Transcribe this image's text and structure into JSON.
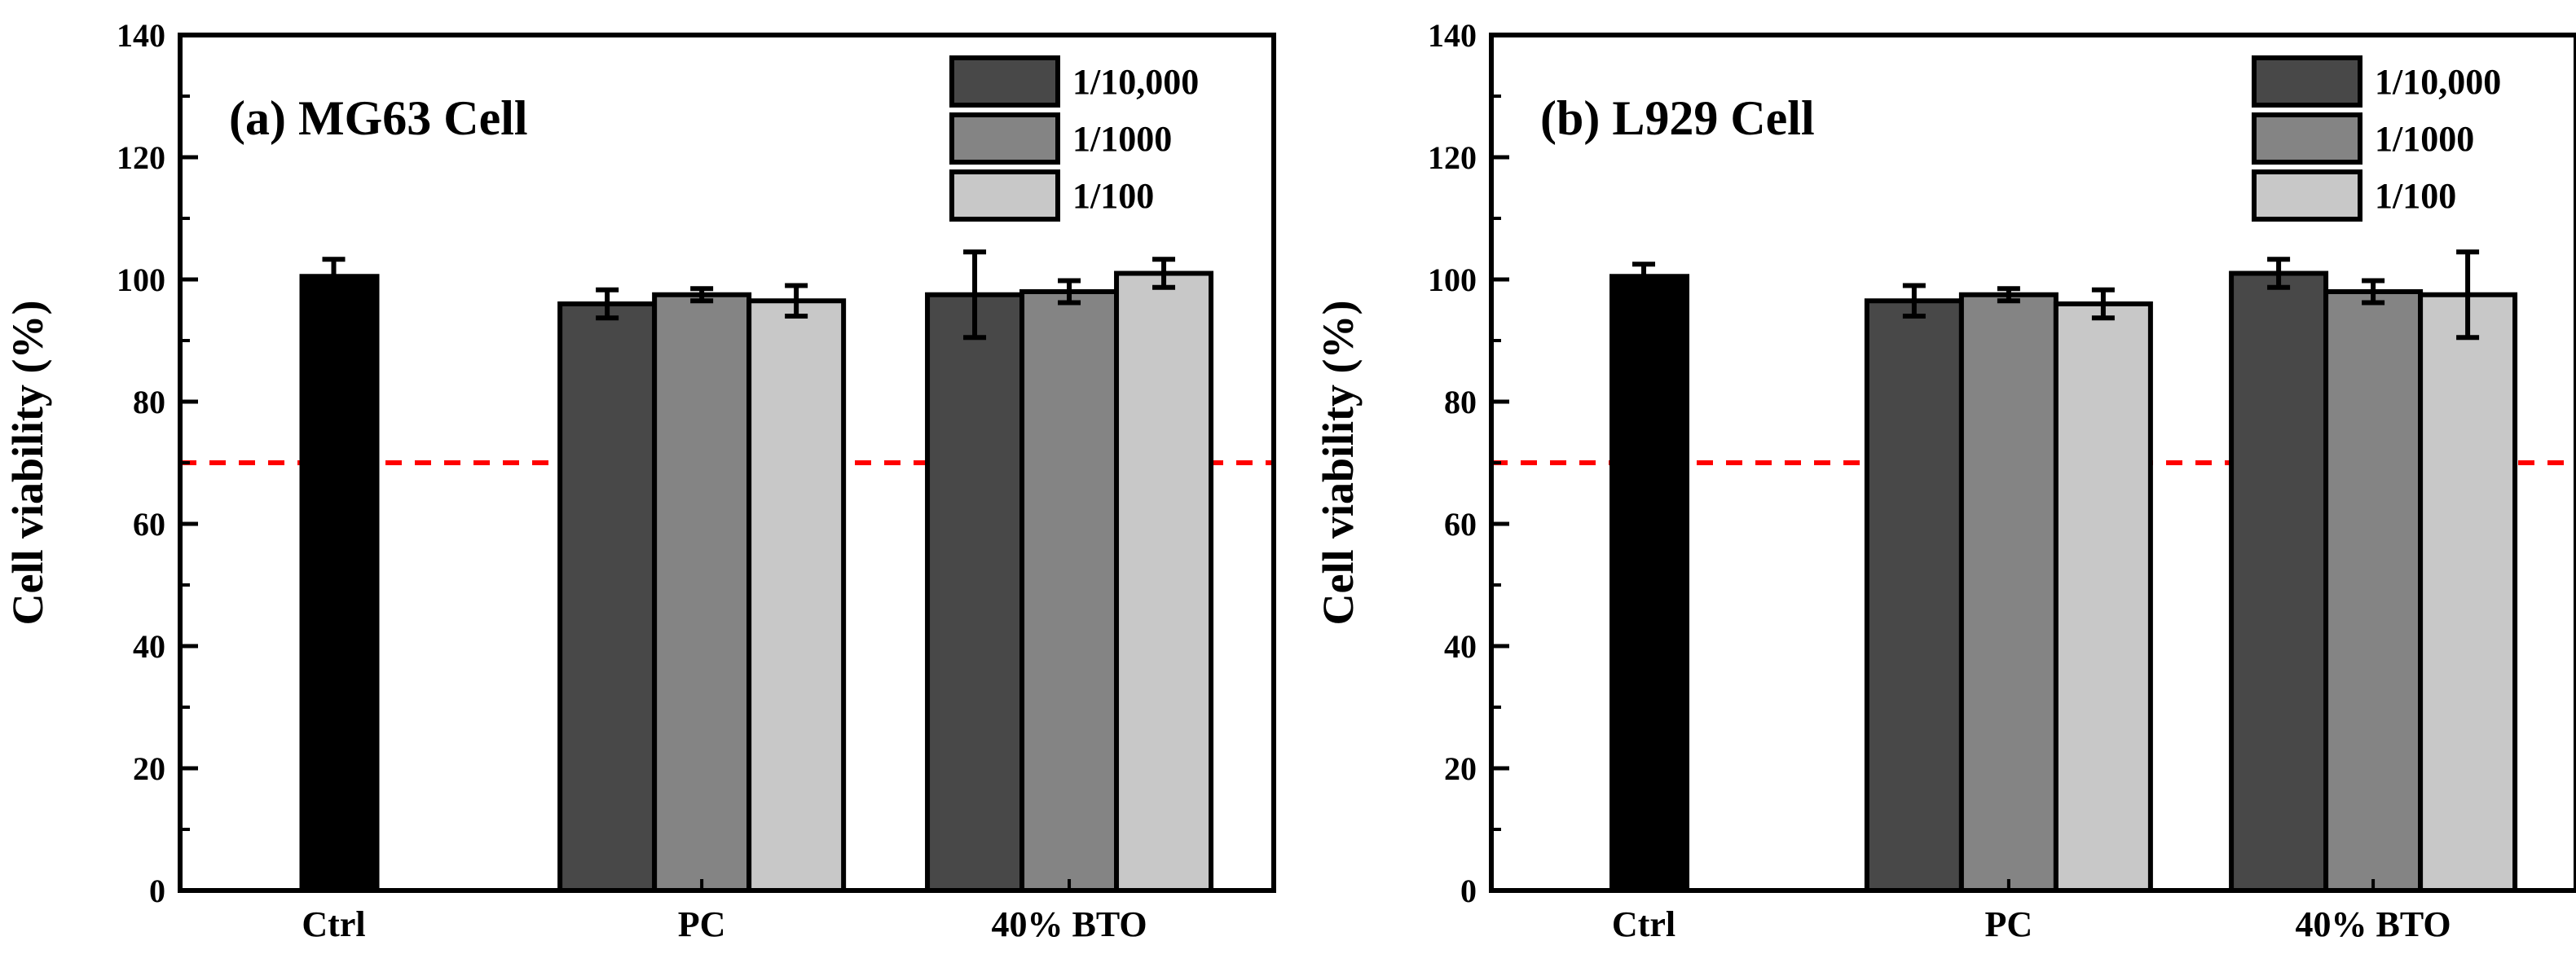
{
  "chart_data": [
    {
      "type": "bar",
      "title": "(a) MG63 Cell",
      "xlabel": "",
      "ylabel": "Cell viability (%)",
      "ylim": [
        0,
        140
      ],
      "yticks": [
        0,
        20,
        40,
        60,
        80,
        100,
        120,
        140
      ],
      "categories": [
        "Ctrl",
        "PC",
        "40% BTO"
      ],
      "control": {
        "name": "Ctrl",
        "value": 100.5,
        "error": 2.8,
        "color": "#000000"
      },
      "series": [
        {
          "name": "1/10,000",
          "color": "#484848",
          "values": [
            null,
            96.0,
            97.5
          ],
          "errors": [
            null,
            2.3,
            7.0
          ]
        },
        {
          "name": "1/1000",
          "color": "#848484",
          "values": [
            null,
            97.5,
            98.0
          ],
          "errors": [
            null,
            1.0,
            1.8
          ]
        },
        {
          "name": "1/100",
          "color": "#c8c8c8",
          "values": [
            null,
            96.5,
            101.0
          ],
          "errors": [
            null,
            2.5,
            2.3
          ]
        }
      ],
      "reference_line": {
        "y": 70,
        "color": "#ff0000",
        "style": "dashed"
      },
      "legend": "top-right"
    },
    {
      "type": "bar",
      "title": "(b) L929 Cell",
      "xlabel": "",
      "ylabel": "Cell viability (%)",
      "ylim": [
        0,
        140
      ],
      "yticks": [
        0,
        20,
        40,
        60,
        80,
        100,
        120,
        140
      ],
      "categories": [
        "Ctrl",
        "PC",
        "40% BTO"
      ],
      "control": {
        "name": "Ctrl",
        "value": 100.5,
        "error": 2.0,
        "color": "#000000"
      },
      "series": [
        {
          "name": "1/10,000",
          "color": "#484848",
          "values": [
            null,
            96.5,
            101.0
          ],
          "errors": [
            null,
            2.5,
            2.3
          ]
        },
        {
          "name": "1/1000",
          "color": "#848484",
          "values": [
            null,
            97.5,
            98.0
          ],
          "errors": [
            null,
            1.0,
            1.8
          ]
        },
        {
          "name": "1/100",
          "color": "#c8c8c8",
          "values": [
            null,
            96.0,
            97.5
          ],
          "errors": [
            null,
            2.3,
            7.0
          ]
        }
      ],
      "reference_line": {
        "y": 70,
        "color": "#ff0000",
        "style": "dashed"
      },
      "legend": "top-right"
    }
  ]
}
